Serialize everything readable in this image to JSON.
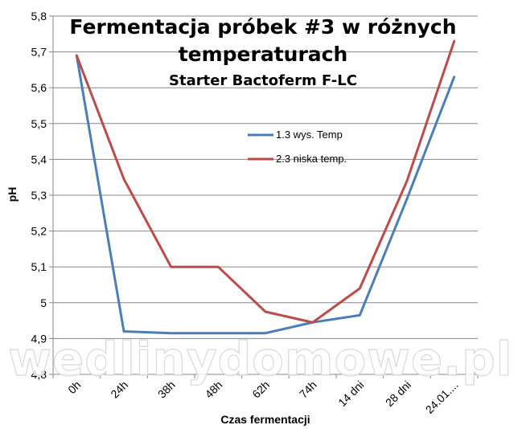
{
  "chart_data": {
    "type": "line",
    "title_lines": [
      "Fermentacja próbek #3 w różnych",
      "temperaturach"
    ],
    "subtitle": "Starter Bactoferm F-LC",
    "xlabel": "Czas fermentacji",
    "ylabel": "pH",
    "categories": [
      "0h",
      "24h",
      "38h",
      "48h",
      "62h",
      "74h",
      "14 dni",
      "28 dni",
      "24.01...."
    ],
    "ylim": [
      4.8,
      5.8
    ],
    "yticks": [
      "4,8",
      "4,9",
      "5",
      "5,1",
      "5,2",
      "5,3",
      "5,4",
      "5,5",
      "5,6",
      "5,7",
      "5,8"
    ],
    "ytick_values": [
      4.8,
      4.9,
      5.0,
      5.1,
      5.2,
      5.3,
      5.4,
      5.5,
      5.6,
      5.7,
      5.8
    ],
    "grid": true,
    "legend_position": "center-right",
    "series": [
      {
        "name": "1.3 wys. Temp",
        "color": "#4a7ebb",
        "values": [
          5.69,
          4.92,
          4.915,
          4.915,
          4.915,
          4.945,
          4.965,
          5.29,
          5.63
        ]
      },
      {
        "name": "2.3 niska temp.",
        "color": "#be4b48",
        "values": [
          5.69,
          5.345,
          5.1,
          5.1,
          4.975,
          4.945,
          5.04,
          5.34,
          5.73
        ]
      }
    ]
  },
  "watermark": "wedlinydomowe.pl"
}
